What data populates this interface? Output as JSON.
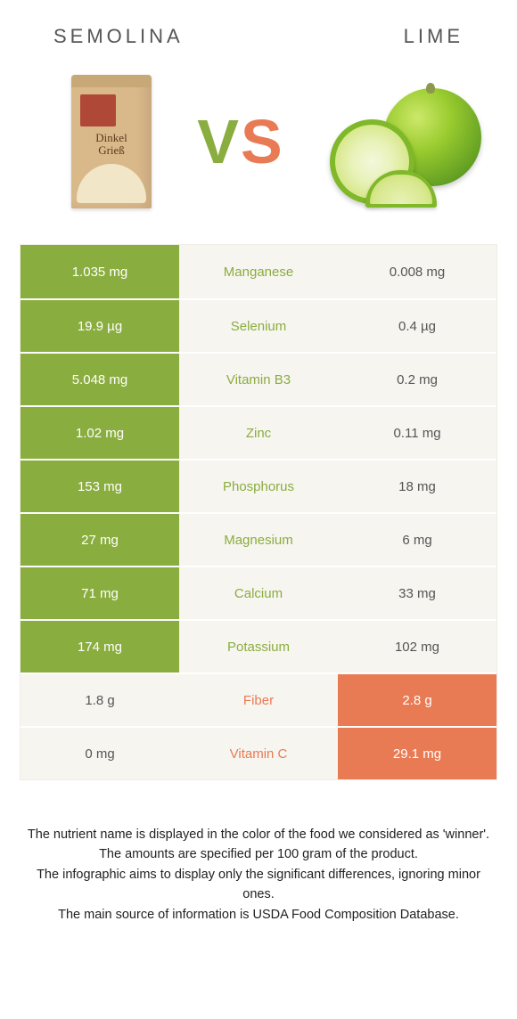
{
  "header": {
    "left_title": "SEMOLINA",
    "right_title": "LIME"
  },
  "vs": {
    "v": "V",
    "s": "S"
  },
  "package": {
    "line1": "Dinkel",
    "line2": "Grieß"
  },
  "colors": {
    "green": "#8aad3f",
    "orange": "#e87b54",
    "light": "#f7f5f0",
    "muted": "#555555"
  },
  "table": {
    "rows": [
      {
        "nutrient": "Manganese",
        "left": "1.035 mg",
        "right": "0.008 mg",
        "winner": "left"
      },
      {
        "nutrient": "Selenium",
        "left": "19.9 µg",
        "right": "0.4 µg",
        "winner": "left"
      },
      {
        "nutrient": "Vitamin B3",
        "left": "5.048 mg",
        "right": "0.2 mg",
        "winner": "left"
      },
      {
        "nutrient": "Zinc",
        "left": "1.02 mg",
        "right": "0.11 mg",
        "winner": "left"
      },
      {
        "nutrient": "Phosphorus",
        "left": "153 mg",
        "right": "18 mg",
        "winner": "left"
      },
      {
        "nutrient": "Magnesium",
        "left": "27 mg",
        "right": "6 mg",
        "winner": "left"
      },
      {
        "nutrient": "Calcium",
        "left": "71 mg",
        "right": "33 mg",
        "winner": "left"
      },
      {
        "nutrient": "Potassium",
        "left": "174 mg",
        "right": "102 mg",
        "winner": "left"
      },
      {
        "nutrient": "Fiber",
        "left": "1.8 g",
        "right": "2.8 g",
        "winner": "right"
      },
      {
        "nutrient": "Vitamin C",
        "left": "0 mg",
        "right": "29.1 mg",
        "winner": "right"
      }
    ]
  },
  "footer": {
    "l1": "The nutrient name is displayed in the color of the food we considered as 'winner'.",
    "l2": "The amounts are specified per 100 gram of the product.",
    "l3": "The infographic aims to display only the significant differences, ignoring minor ones.",
    "l4": "The main source of information is USDA Food Composition Database."
  }
}
